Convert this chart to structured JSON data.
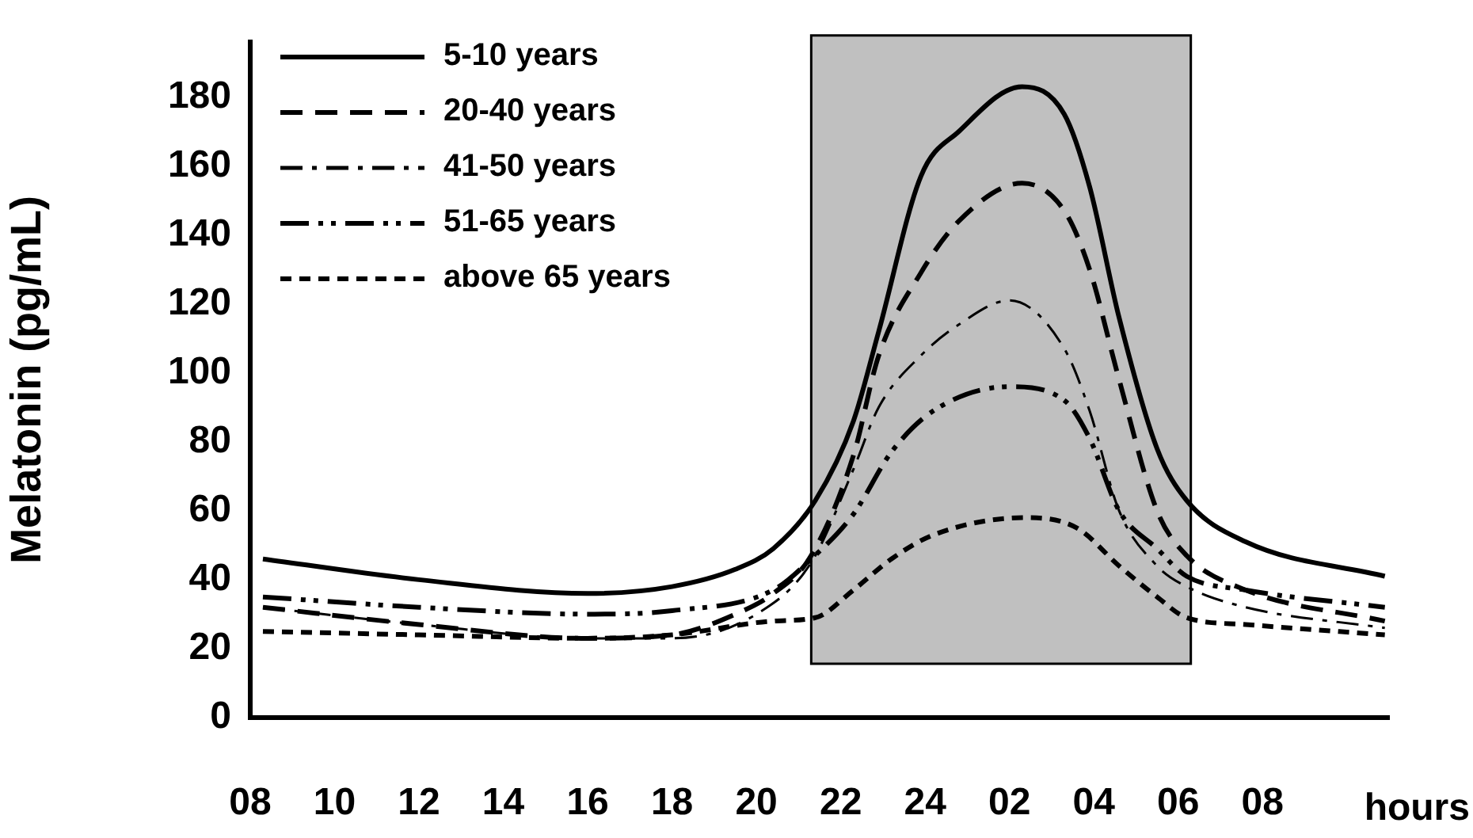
{
  "chart_data": {
    "type": "line",
    "ylabel": "Melatonin (pg/mL)",
    "xlabel": "hours",
    "xlim": [
      "--01-01T08:00",
      "--01-02T11:00"
    ],
    "ylim": [
      0,
      196
    ],
    "yticks": [
      0,
      20,
      40,
      60,
      80,
      100,
      120,
      140,
      160,
      180
    ],
    "xticks": [
      {
        "value": "--01-01T08:00",
        "label": "08"
      },
      {
        "value": "--01-01T10:00",
        "label": "10"
      },
      {
        "value": "--01-01T12:00",
        "label": "12"
      },
      {
        "value": "--01-01T14:00",
        "label": "14"
      },
      {
        "value": "--01-01T16:00",
        "label": "16"
      },
      {
        "value": "--01-01T18:00",
        "label": "18"
      },
      {
        "value": "--01-01T20:00",
        "label": "20"
      },
      {
        "value": "--01-01T22:00",
        "label": "22"
      },
      {
        "value": "--01-02T00:00",
        "label": "24"
      },
      {
        "value": "--01-02T02:00",
        "label": "02"
      },
      {
        "value": "--01-02T04:00",
        "label": "04"
      },
      {
        "value": "--01-02T06:00",
        "label": "06"
      },
      {
        "value": "--01-02T08:00",
        "label": "08"
      }
    ],
    "grid": false,
    "legend": "top left",
    "marker": "none",
    "bands": [
      {
        "axis": "x",
        "from": "--01-01T21:18",
        "to": "--01-02T06:18",
        "color": "#c0c0c0"
      }
    ],
    "series": [
      {
        "name": "5-10 years",
        "color": "#000000",
        "line_style": "solid",
        "x": [
          "--01-01T08:18",
          "--01-01T12:00",
          "--01-01T16:00",
          "--01-01T18:00",
          "--01-01T19:30",
          "--01-01T20:24",
          "--01-01T21:24",
          "--01-01T22:18",
          "--01-01T22:54",
          "--01-01T23:54",
          "--01-02T00:48",
          "--01-02T02:18",
          "--01-02T03:18",
          "--01-02T03:54",
          "--01-02T04:36",
          "--01-02T05:30",
          "--01-02T06:12",
          "--01-02T07:36",
          "--01-02T10:54"
        ],
        "values": [
          46,
          40,
          36,
          38,
          43,
          49,
          63,
          86,
          112,
          157,
          170,
          183,
          175,
          154,
          116,
          78,
          63,
          51,
          41
        ]
      },
      {
        "name": "20-40 years",
        "color": "#000000",
        "line_style": "dashed",
        "x": [
          "--01-01T08:18",
          "--01-01T12:00",
          "--01-01T16:00",
          "--01-01T18:00",
          "--01-01T19:30",
          "--01-01T20:24",
          "--01-01T21:18",
          "--01-01T22:18",
          "--01-01T22:54",
          "--01-01T23:54",
          "--01-02T00:48",
          "--01-02T02:18",
          "--01-02T03:18",
          "--01-02T03:54",
          "--01-02T04:36",
          "--01-02T05:30",
          "--01-02T06:12",
          "--01-02T07:36",
          "--01-02T10:54"
        ],
        "values": [
          32,
          27,
          23,
          24,
          30,
          36,
          47,
          76,
          105,
          129,
          144,
          155,
          147,
          130,
          98,
          60,
          47,
          37,
          28
        ]
      },
      {
        "name": "41-50 years",
        "color": "#000000",
        "line_style": "dashed",
        "x": [
          "--01-01T08:18",
          "--01-01T12:00",
          "--01-01T16:00",
          "--01-01T18:00",
          "--01-01T20:00",
          "--01-01T21:18",
          "--01-01T22:18",
          "--01-01T22:54",
          "--01-01T23:54",
          "--01-02T00:48",
          "--01-02T02:00",
          "--01-02T03:18",
          "--01-02T03:54",
          "--01-02T04:36",
          "--01-02T05:30",
          "--01-02T06:12",
          "--01-02T07:36",
          "--01-02T10:54"
        ],
        "values": [
          32,
          27,
          23,
          23,
          30,
          45,
          72,
          90,
          105,
          114,
          121,
          107,
          89,
          60,
          44,
          38,
          32,
          26
        ]
      },
      {
        "name": "51-65 years",
        "color": "#000000",
        "line_style": "dashed",
        "x": [
          "--01-01T08:18",
          "--01-01T12:00",
          "--01-01T16:00",
          "--01-01T18:00",
          "--01-01T20:24",
          "--01-01T21:18",
          "--01-01T22:18",
          "--01-01T23:12",
          "--01-02T00:12",
          "--01-02T02:00",
          "--01-02T03:18",
          "--01-02T03:54",
          "--01-02T04:36",
          "--01-02T05:30",
          "--01-02T06:12",
          "--01-02T07:36",
          "--01-02T10:54"
        ],
        "values": [
          35,
          32,
          30,
          31,
          37,
          46,
          59,
          77,
          89,
          96,
          92,
          81,
          60,
          49,
          41,
          37,
          32
        ]
      },
      {
        "name": "above 65 years",
        "color": "#000000",
        "line_style": "dashed",
        "x": [
          "--01-01T08:18",
          "--01-01T12:00",
          "--01-01T16:00",
          "--01-01T18:00",
          "--01-01T20:24",
          "--01-01T21:24",
          "--01-01T22:18",
          "--01-01T23:12",
          "--01-02T00:12",
          "--01-02T02:24",
          "--01-02T03:36",
          "--01-02T04:36",
          "--01-02T05:30",
          "--01-02T06:12",
          "--01-02T07:36",
          "--01-02T10:54"
        ],
        "values": [
          25,
          24,
          23,
          24,
          28,
          29,
          37,
          46,
          53,
          58,
          55,
          44,
          35,
          29,
          27,
          24
        ]
      }
    ]
  }
}
